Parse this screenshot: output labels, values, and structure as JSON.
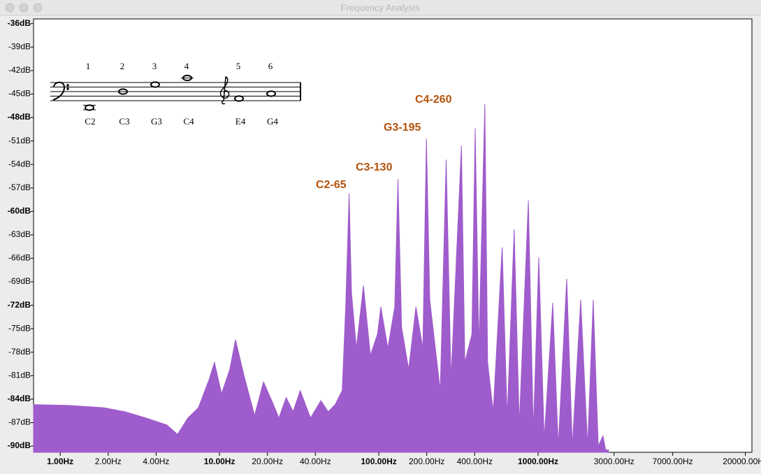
{
  "window_title": "Frequency Analysis",
  "chart_data": {
    "type": "area",
    "color": "#9f5ccc",
    "log_x": true,
    "grid": false,
    "xlim": [
      0.68,
      22000
    ],
    "ylim": [
      -35.4,
      -90.8
    ],
    "xticks": [
      {
        "value": 1,
        "label": "1.00Hz"
      },
      {
        "value": 2,
        "label": "2.00Hz"
      },
      {
        "value": 4,
        "label": "4.00Hz"
      },
      {
        "value": 10,
        "label": "10.00Hz"
      },
      {
        "value": 20,
        "label": "20.00Hz"
      },
      {
        "value": 40,
        "label": "40.00Hz"
      },
      {
        "value": 100,
        "label": "100.00Hz"
      },
      {
        "value": 200,
        "label": "200.00Hz"
      },
      {
        "value": 400,
        "label": "400.00Hz"
      },
      {
        "value": 1000,
        "label": "1000.00Hz"
      },
      {
        "value": 3000,
        "label": "3000.00Hz"
      },
      {
        "value": 7000,
        "label": "7000.00Hz"
      },
      {
        "value": 20000,
        "label": "20000.00Hz"
      }
    ],
    "yticks": [
      {
        "value": -36,
        "label": "-36dB"
      },
      {
        "value": -39,
        "label": "-39dB"
      },
      {
        "value": -42,
        "label": "-42dB"
      },
      {
        "value": -45,
        "label": "-45dB"
      },
      {
        "value": -48,
        "label": "-48dB"
      },
      {
        "value": -51,
        "label": "-51dB"
      },
      {
        "value": -54,
        "label": "-54dB"
      },
      {
        "value": -57,
        "label": "-57dB"
      },
      {
        "value": -60,
        "label": "-60dB"
      },
      {
        "value": -63,
        "label": "-63dB"
      },
      {
        "value": -66,
        "label": "-66dB"
      },
      {
        "value": -69,
        "label": "-69dB"
      },
      {
        "value": -72,
        "label": "-72dB"
      },
      {
        "value": -75,
        "label": "-75dB"
      },
      {
        "value": -78,
        "label": "-78dB"
      },
      {
        "value": -81,
        "label": "-81dB"
      },
      {
        "value": -84,
        "label": "-84dB"
      },
      {
        "value": -87,
        "label": "-87dB"
      },
      {
        "value": -90,
        "label": "-90dB"
      }
    ],
    "x": [
      0.68,
      1.13,
      1.88,
      2.54,
      3.45,
      4.67,
      5.44,
      6.33,
      7.37,
      8.6,
      9.3,
      10.3,
      11.6,
      12.6,
      14.3,
      16.6,
      18.9,
      21.8,
      23.6,
      26.2,
      29,
      32.1,
      37.3,
      43.3,
      48.1,
      53.2,
      58.9,
      62,
      65.1,
      67.4,
      72.3,
      80.1,
      88.5,
      98.1,
      103,
      114,
      126,
      132,
      139,
      154,
      171,
      189,
      199,
      209,
      243,
      265,
      284,
      330,
      347,
      384,
      403,
      425,
      463,
      482,
      523,
      595,
      640,
      708,
      762,
      869,
      934,
      1010,
      1093,
      1236,
      1339,
      1513,
      1640,
      1852,
      2046,
      2218,
      2385,
      2555,
      2656,
      2767
    ],
    "values": [
      -84.7,
      -84.8,
      -85.1,
      -85.6,
      -86.4,
      -87.3,
      -88.5,
      -86.4,
      -85.1,
      -81.5,
      -79.3,
      -83.3,
      -80.2,
      -76.4,
      -81.1,
      -86.1,
      -81.8,
      -84.7,
      -86.4,
      -83.8,
      -85.6,
      -82.9,
      -86.4,
      -84.2,
      -85.6,
      -84.7,
      -82.9,
      -72.2,
      -57.7,
      -70.4,
      -77.5,
      -69.5,
      -78.4,
      -75.7,
      -72.2,
      -77.5,
      -72.2,
      -55.9,
      -74.8,
      -80.2,
      -72.2,
      -77.5,
      -50.7,
      -71.3,
      -82.9,
      -53.4,
      -81.5,
      -51.6,
      -79.3,
      -75.7,
      -49.4,
      -77.5,
      -46.3,
      -79.3,
      -85.6,
      -64.6,
      -86.4,
      -62.3,
      -87.3,
      -58.6,
      -88.2,
      -65.9,
      -89.1,
      -71.7,
      -90,
      -68.6,
      -90,
      -71.3,
      -90,
      -71.3,
      -90,
      -88.7,
      -90.5,
      -90.5
    ],
    "annotations": [
      {
        "text": "C2-65"
      },
      {
        "text": "C3-130"
      },
      {
        "text": "G3-195"
      },
      {
        "text": "C4-260"
      }
    ]
  },
  "staff": {
    "numbers": [
      "1",
      "2",
      "3",
      "4",
      "5",
      "6"
    ],
    "notes": [
      "C2",
      "C3",
      "G3",
      "C4",
      "E4",
      "G4"
    ]
  }
}
